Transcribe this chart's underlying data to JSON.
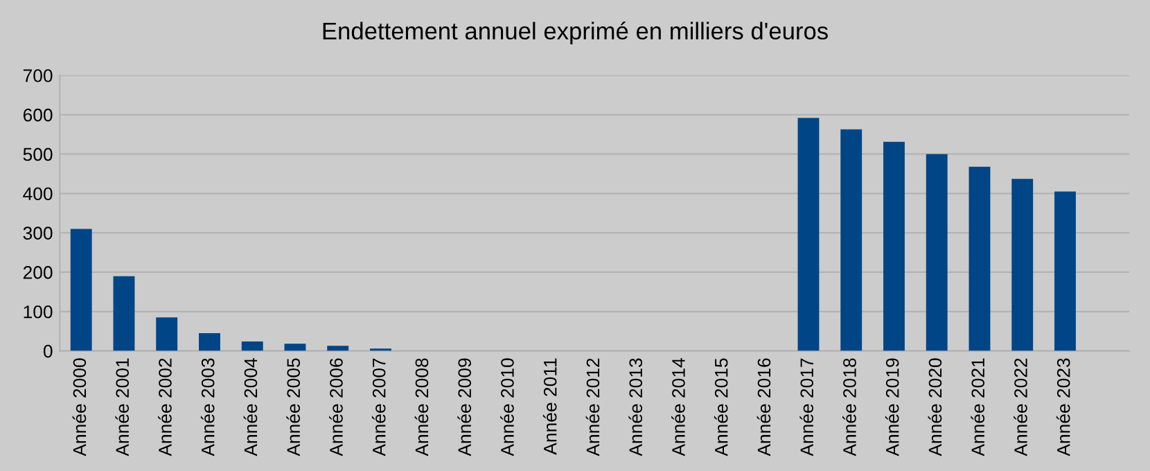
{
  "chart_data": {
    "type": "bar",
    "title": "Endettement annuel exprimé en milliers d'euros",
    "categories": [
      "Année 2000",
      "Année 2001",
      "Année 2002",
      "Année 2003",
      "Année 2004",
      "Année 2005",
      "Année 2006",
      "Année 2007",
      "Année 2008",
      "Année 2009",
      "Année 2010",
      "Année 2011",
      "Année 2012",
      "Année 2013",
      "Année 2014",
      "Année 2015",
      "Année 2016",
      "Année 2017",
      "Année 2018",
      "Année 2019",
      "Année 2020",
      "Année 2021",
      "Année 2022",
      "Année 2023"
    ],
    "values": [
      310,
      190,
      85,
      45,
      24,
      18,
      13,
      6,
      0,
      0,
      0,
      0,
      0,
      0,
      0,
      0,
      0,
      592,
      563,
      531,
      500,
      468,
      437,
      405
    ],
    "color": "#004586",
    "ylim": [
      0,
      700
    ],
    "yticks": [
      0,
      100,
      200,
      300,
      400,
      500,
      600,
      700
    ],
    "grid": "y",
    "legend": false
  }
}
